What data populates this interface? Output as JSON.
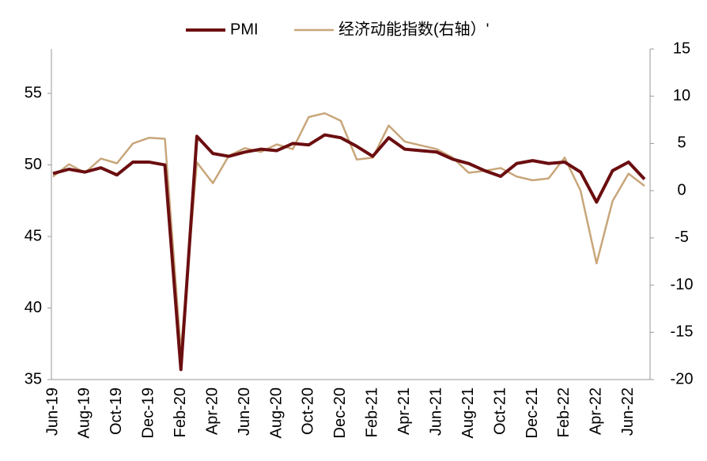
{
  "chart_data": {
    "type": "line",
    "categories": [
      "Jun-19",
      null,
      "Aug-19",
      null,
      "Oct-19",
      null,
      "Dec-19",
      null,
      "Feb-20",
      null,
      "Apr-20",
      null,
      "Jun-20",
      null,
      "Aug-20",
      null,
      "Oct-20",
      null,
      "Dec-20",
      null,
      "Feb-21",
      null,
      "Apr-21",
      null,
      "Jun-21",
      null,
      "Aug-21",
      null,
      "Oct-21",
      null,
      "Dec-21",
      null,
      "Feb-22",
      null,
      "Apr-22",
      null,
      "Jun-22",
      null
    ],
    "series": [
      {
        "name": "PMI",
        "color": "#6b0e10",
        "values": [
          49.4,
          49.7,
          49.5,
          49.8,
          49.3,
          50.2,
          50.2,
          50.0,
          35.7,
          52.0,
          50.8,
          50.6,
          50.9,
          51.1,
          51.0,
          51.5,
          51.4,
          52.1,
          51.9,
          51.3,
          50.6,
          51.9,
          51.1,
          51.0,
          50.9,
          50.4,
          50.1,
          49.6,
          49.2,
          50.1,
          50.3,
          50.1,
          50.2,
          49.5,
          47.4,
          49.6,
          50.2,
          49.0
        ]
      },
      {
        "name": "经济动能指数(右轴）'",
        "color": "#c8a67a",
        "axis": "y2",
        "values": [
          1.5,
          2.8,
          1.9,
          3.4,
          2.9,
          5.0,
          5.6,
          5.5,
          -17.0,
          3.0,
          0.8,
          3.7,
          4.5,
          4.1,
          4.9,
          4.4,
          7.8,
          8.2,
          7.4,
          3.3,
          3.5,
          6.9,
          5.2,
          4.8,
          4.4,
          3.5,
          1.9,
          2.1,
          2.4,
          1.5,
          1.1,
          1.3,
          3.5,
          0.0,
          -7.7,
          -1.1,
          1.8,
          0.5
        ]
      }
    ],
    "ylim": [
      35,
      58.1
    ],
    "yticks": [
      35,
      40,
      45,
      50,
      55
    ],
    "y2lim": [
      -20,
      15
    ],
    "y2ticks": [
      -20,
      -15,
      -10,
      -5,
      0,
      5,
      10,
      15
    ],
    "grid": false,
    "legend": "top"
  }
}
